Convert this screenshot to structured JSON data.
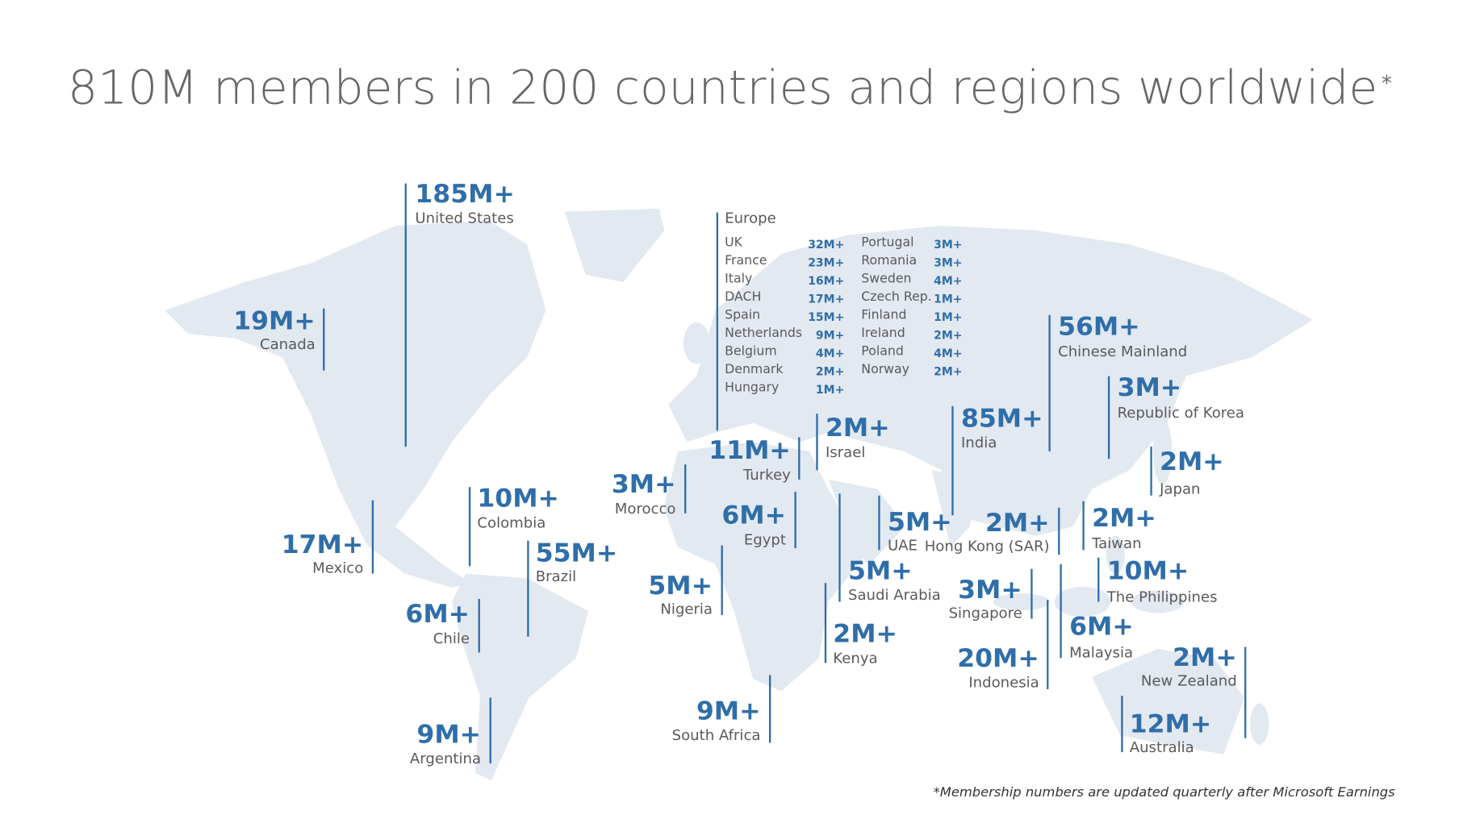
{
  "title": "810M members in 200 countries and regions worldwide",
  "title_mark": "*",
  "regions": [
    {
      "value": "185M+",
      "name": "United States"
    },
    {
      "value": "19M+",
      "name": "Canada"
    },
    {
      "value": "17M+",
      "name": "Mexico"
    },
    {
      "value": "10M+",
      "name": "Colombia"
    },
    {
      "value": "55M+",
      "name": "Brazil"
    },
    {
      "value": "6M+",
      "name": "Chile"
    },
    {
      "value": "9M+",
      "name": "Argentina"
    },
    {
      "value": "3M+",
      "name": "Morocco"
    },
    {
      "value": "11M+",
      "name": "Turkey"
    },
    {
      "value": "2M+",
      "name": "Israel"
    },
    {
      "value": "6M+",
      "name": "Egypt"
    },
    {
      "value": "5M+",
      "name": "Nigeria"
    },
    {
      "value": "9M+",
      "name": "South Africa"
    },
    {
      "value": "5M+",
      "name": "Saudi Arabia"
    },
    {
      "value": "2M+",
      "name": "Kenya"
    },
    {
      "value": "5M+",
      "name": "UAE"
    },
    {
      "value": "85M+",
      "name": "India"
    },
    {
      "value": "2M+",
      "name": "Hong Kong (SAR)"
    },
    {
      "value": "56M+",
      "name": "Chinese Mainland"
    },
    {
      "value": "3M+",
      "name": "Republic of Korea"
    },
    {
      "value": "2M+",
      "name": "Japan"
    },
    {
      "value": "2M+",
      "name": "Taiwan"
    },
    {
      "value": "10M+",
      "name": "The Philippines"
    },
    {
      "value": "3M+",
      "name": "Singapore"
    },
    {
      "value": "6M+",
      "name": "Malaysia"
    },
    {
      "value": "20M+",
      "name": "Indonesia"
    },
    {
      "value": "2M+",
      "name": "New Zealand"
    },
    {
      "value": "12M+",
      "name": "Australia"
    }
  ],
  "europe": {
    "title": "Europe",
    "columns": [
      [
        {
          "name": "UK",
          "value": "32M+"
        },
        {
          "name": "France",
          "value": "23M+"
        },
        {
          "name": "Italy",
          "value": "16M+"
        },
        {
          "name": "DACH",
          "value": "17M+"
        },
        {
          "name": "Spain",
          "value": "15M+"
        },
        {
          "name": "Netherlands",
          "value": "9M+"
        },
        {
          "name": "Belgium",
          "value": "4M+"
        },
        {
          "name": "Denmark",
          "value": "2M+"
        },
        {
          "name": "Hungary",
          "value": "1M+"
        }
      ],
      [
        {
          "name": "Portugal",
          "value": "3M+"
        },
        {
          "name": "Romania",
          "value": "3M+"
        },
        {
          "name": "Sweden",
          "value": "4M+"
        },
        {
          "name": "Czech Rep.",
          "value": "1M+"
        },
        {
          "name": "Finland",
          "value": "1M+"
        },
        {
          "name": "Ireland",
          "value": "2M+"
        },
        {
          "name": "Poland",
          "value": "4M+"
        },
        {
          "name": "Norway",
          "value": "2M+"
        }
      ]
    ]
  },
  "footnote": "*Membership numbers are updated quarterly after Microsoft Earnings"
}
